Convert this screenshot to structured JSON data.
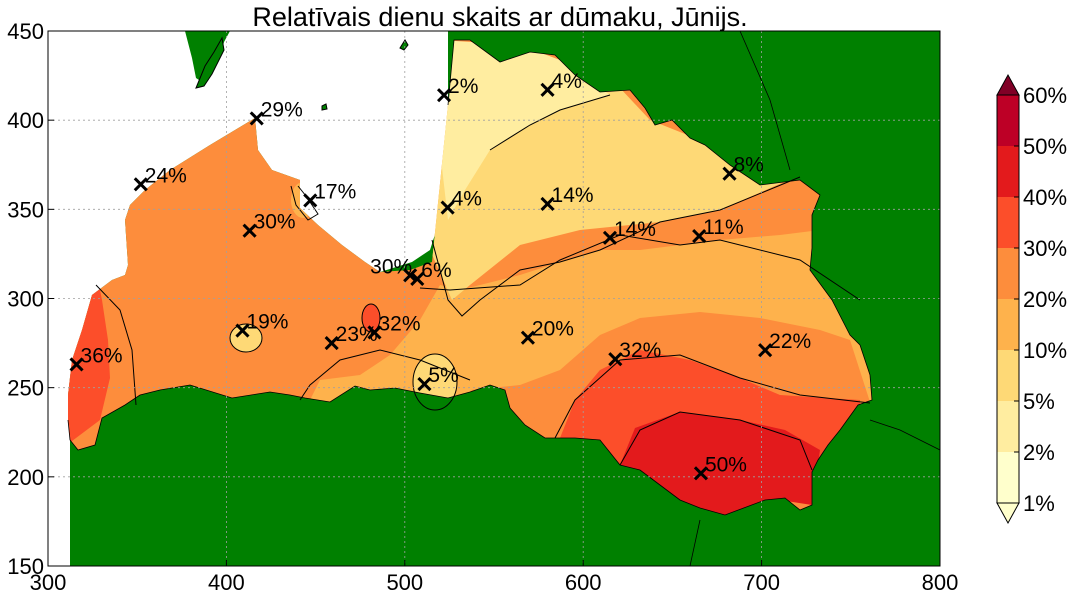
{
  "chart_data": {
    "type": "contour-map",
    "title": "Relatīvais dienu skaits ar dūmaku, Jūnijs.",
    "xlabel": "",
    "ylabel": "",
    "xlim": [
      300,
      800
    ],
    "ylim": [
      150,
      450
    ],
    "x_ticks": [
      "300",
      "400",
      "500",
      "600",
      "700",
      "800"
    ],
    "y_ticks": [
      "150",
      "200",
      "250",
      "300",
      "350",
      "400",
      "450"
    ],
    "grid": true,
    "colorbar": {
      "position": "right",
      "levels": [
        "1%",
        "2%",
        "5%",
        "10%",
        "20%",
        "30%",
        "40%",
        "50%",
        "60%"
      ],
      "colors": [
        "#ffffcc",
        "#ffeda0",
        "#fed976",
        "#feb24c",
        "#fd8d3c",
        "#fc4e2a",
        "#e31a1c",
        "#bd0026",
        "#800026"
      ]
    },
    "stations": [
      {
        "x": 316,
        "y": 263,
        "label": "36%"
      },
      {
        "x": 352,
        "y": 364,
        "label": "24%"
      },
      {
        "x": 413,
        "y": 338,
        "label": "30%"
      },
      {
        "x": 417,
        "y": 401,
        "label": "29%"
      },
      {
        "x": 447,
        "y": 355,
        "label": "17%"
      },
      {
        "x": 409,
        "y": 282,
        "label": "19%"
      },
      {
        "x": 459,
        "y": 275,
        "label": "23%"
      },
      {
        "x": 483,
        "y": 281,
        "label": "32%"
      },
      {
        "x": 503,
        "y": 313,
        "label": "30%"
      },
      {
        "x": 507,
        "y": 311,
        "label": "6%"
      },
      {
        "x": 511,
        "y": 252,
        "label": "5%"
      },
      {
        "x": 522,
        "y": 414,
        "label": "2%"
      },
      {
        "x": 524,
        "y": 351,
        "label": "4%"
      },
      {
        "x": 569,
        "y": 278,
        "label": "20%"
      },
      {
        "x": 580,
        "y": 417,
        "label": "4%"
      },
      {
        "x": 580,
        "y": 353,
        "label": "14%"
      },
      {
        "x": 615,
        "y": 334,
        "label": "14%"
      },
      {
        "x": 618,
        "y": 266,
        "label": "32%"
      },
      {
        "x": 665,
        "y": 335,
        "label": "11%"
      },
      {
        "x": 682,
        "y": 370,
        "label": "8%"
      },
      {
        "x": 666,
        "y": 202,
        "label": "50%"
      },
      {
        "x": 702,
        "y": 271,
        "label": "22%"
      }
    ]
  },
  "colors": {
    "land_outside": "#008000",
    "sea": "#ffffff",
    "grid": "#a0a0a0"
  }
}
